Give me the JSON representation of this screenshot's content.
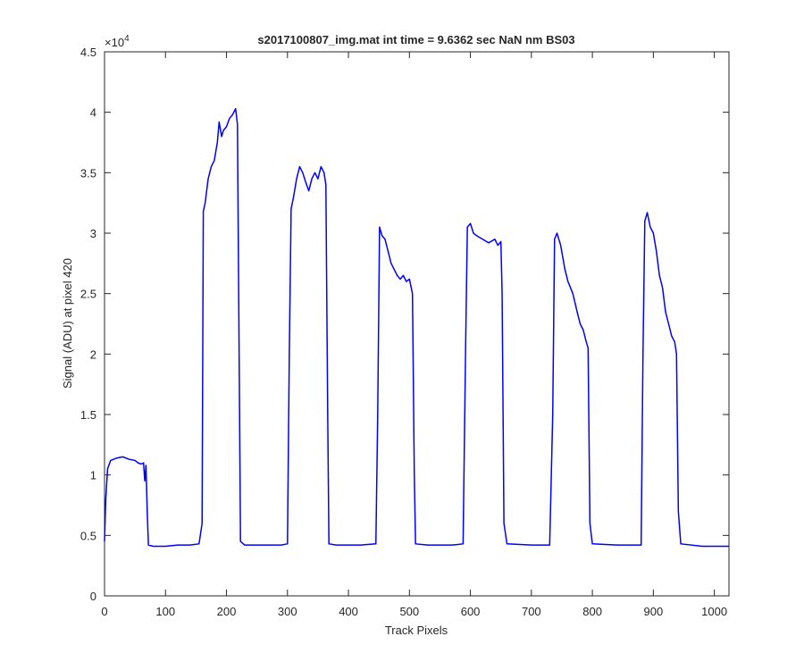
{
  "chart_data": {
    "type": "line",
    "title": "s2017100807_img.mat int time = 9.6362 sec  NaN nm BS03",
    "x_label": "Track Pixels",
    "y_label": "Signal (ADU) at pixel 420",
    "y_multiplier_base": "×10",
    "y_multiplier_exponent": "4",
    "xlim": [
      0,
      1024
    ],
    "xticks": [
      0,
      100,
      200,
      300,
      400,
      500,
      600,
      700,
      800,
      900,
      1000
    ],
    "ylim": [
      0,
      4.5
    ],
    "yticks": [
      0,
      0.5,
      1,
      1.5,
      2,
      2.5,
      3,
      3.5,
      4,
      4.5
    ],
    "grid": false,
    "series": [
      {
        "color": "#0000ff",
        "x": [
          0,
          2,
          5,
          10,
          20,
          30,
          40,
          50,
          55,
          60,
          64,
          66,
          68,
          70,
          72,
          80,
          100,
          120,
          140,
          155,
          160,
          162,
          165,
          170,
          175,
          180,
          185,
          188,
          192,
          195,
          200,
          205,
          210,
          215,
          218,
          220,
          223,
          230,
          260,
          290,
          300,
          303,
          306,
          310,
          315,
          320,
          325,
          330,
          335,
          340,
          345,
          350,
          355,
          360,
          363,
          366,
          368,
          380,
          420,
          445,
          448,
          451,
          455,
          460,
          465,
          470,
          475,
          480,
          485,
          490,
          495,
          500,
          505,
          508,
          510,
          530,
          570,
          588,
          592,
          595,
          600,
          605,
          610,
          620,
          630,
          640,
          645,
          650,
          652,
          655,
          660,
          700,
          730,
          735,
          738,
          742,
          748,
          755,
          760,
          768,
          775,
          780,
          785,
          790,
          793,
          796,
          800,
          840,
          880,
          883,
          886,
          890,
          895,
          900,
          905,
          910,
          915,
          920,
          925,
          930,
          935,
          938,
          941,
          945,
          980,
          1024
        ],
        "values": [
          0.45,
          0.8,
          1.05,
          1.12,
          1.14,
          1.15,
          1.13,
          1.12,
          1.1,
          1.09,
          1.1,
          0.95,
          1.08,
          0.7,
          0.42,
          0.41,
          0.41,
          0.42,
          0.42,
          0.43,
          0.6,
          3.18,
          3.25,
          3.45,
          3.55,
          3.6,
          3.75,
          3.92,
          3.8,
          3.85,
          3.88,
          3.95,
          3.98,
          4.03,
          3.9,
          2.5,
          0.45,
          0.42,
          0.42,
          0.42,
          0.43,
          2.0,
          3.2,
          3.3,
          3.45,
          3.55,
          3.5,
          3.42,
          3.35,
          3.45,
          3.5,
          3.45,
          3.55,
          3.5,
          3.4,
          1.5,
          0.43,
          0.42,
          0.42,
          0.43,
          1.5,
          3.05,
          2.98,
          2.95,
          2.85,
          2.75,
          2.7,
          2.65,
          2.62,
          2.65,
          2.6,
          2.62,
          2.5,
          1.0,
          0.43,
          0.42,
          0.42,
          0.43,
          2.0,
          3.05,
          3.08,
          3.0,
          2.98,
          2.95,
          2.92,
          2.95,
          2.9,
          2.93,
          2.5,
          0.6,
          0.43,
          0.42,
          0.42,
          1.5,
          2.95,
          3.0,
          2.9,
          2.7,
          2.6,
          2.5,
          2.35,
          2.25,
          2.2,
          2.1,
          2.05,
          0.6,
          0.43,
          0.42,
          0.42,
          2.0,
          3.1,
          3.17,
          3.05,
          3.0,
          2.85,
          2.65,
          2.55,
          2.35,
          2.25,
          2.15,
          2.1,
          2.0,
          0.7,
          0.43,
          0.41,
          0.41
        ]
      }
    ]
  }
}
